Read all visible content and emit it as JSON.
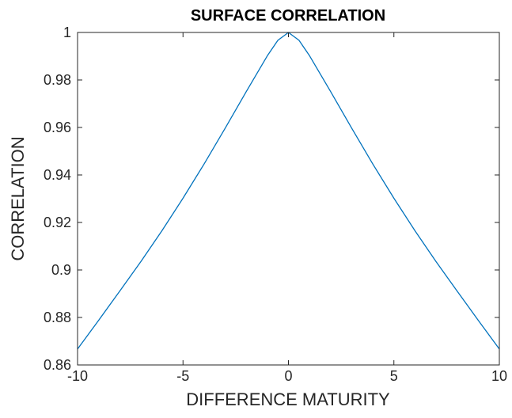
{
  "chart_data": {
    "type": "line",
    "title": "SURFACE CORRELATION",
    "xlabel": "DIFFERENCE MATURITY",
    "ylabel": "CORRELATION",
    "xlim": [
      -10,
      10
    ],
    "ylim": [
      0.86,
      1
    ],
    "xticks": [
      -10,
      -5,
      0,
      5,
      10
    ],
    "xtick_labels": [
      "-10",
      "-5",
      "0",
      "5",
      "10"
    ],
    "yticks": [
      0.86,
      0.88,
      0.9,
      0.92,
      0.94,
      0.96,
      0.98,
      1
    ],
    "ytick_labels": [
      "0.86",
      "0.88",
      "0.9",
      "0.92",
      "0.94",
      "0.96",
      "0.98",
      "1"
    ],
    "grid": false,
    "line_color": "#0072bd",
    "axis_color": "#262626",
    "series": [
      {
        "x": [
          -10,
          -9,
          -8,
          -7,
          -6,
          -5,
          -4,
          -3,
          -2,
          -1,
          -0.5,
          0,
          0.5,
          1,
          2,
          3,
          4,
          5,
          6,
          7,
          8,
          9,
          10
        ],
        "values": [
          0.8667,
          0.8788,
          0.8911,
          0.9035,
          0.9165,
          0.9302,
          0.9446,
          0.9597,
          0.9751,
          0.9902,
          0.9967,
          1.0,
          0.9967,
          0.9902,
          0.9751,
          0.9597,
          0.9446,
          0.9302,
          0.9165,
          0.9035,
          0.8911,
          0.8788,
          0.8667
        ]
      }
    ]
  }
}
